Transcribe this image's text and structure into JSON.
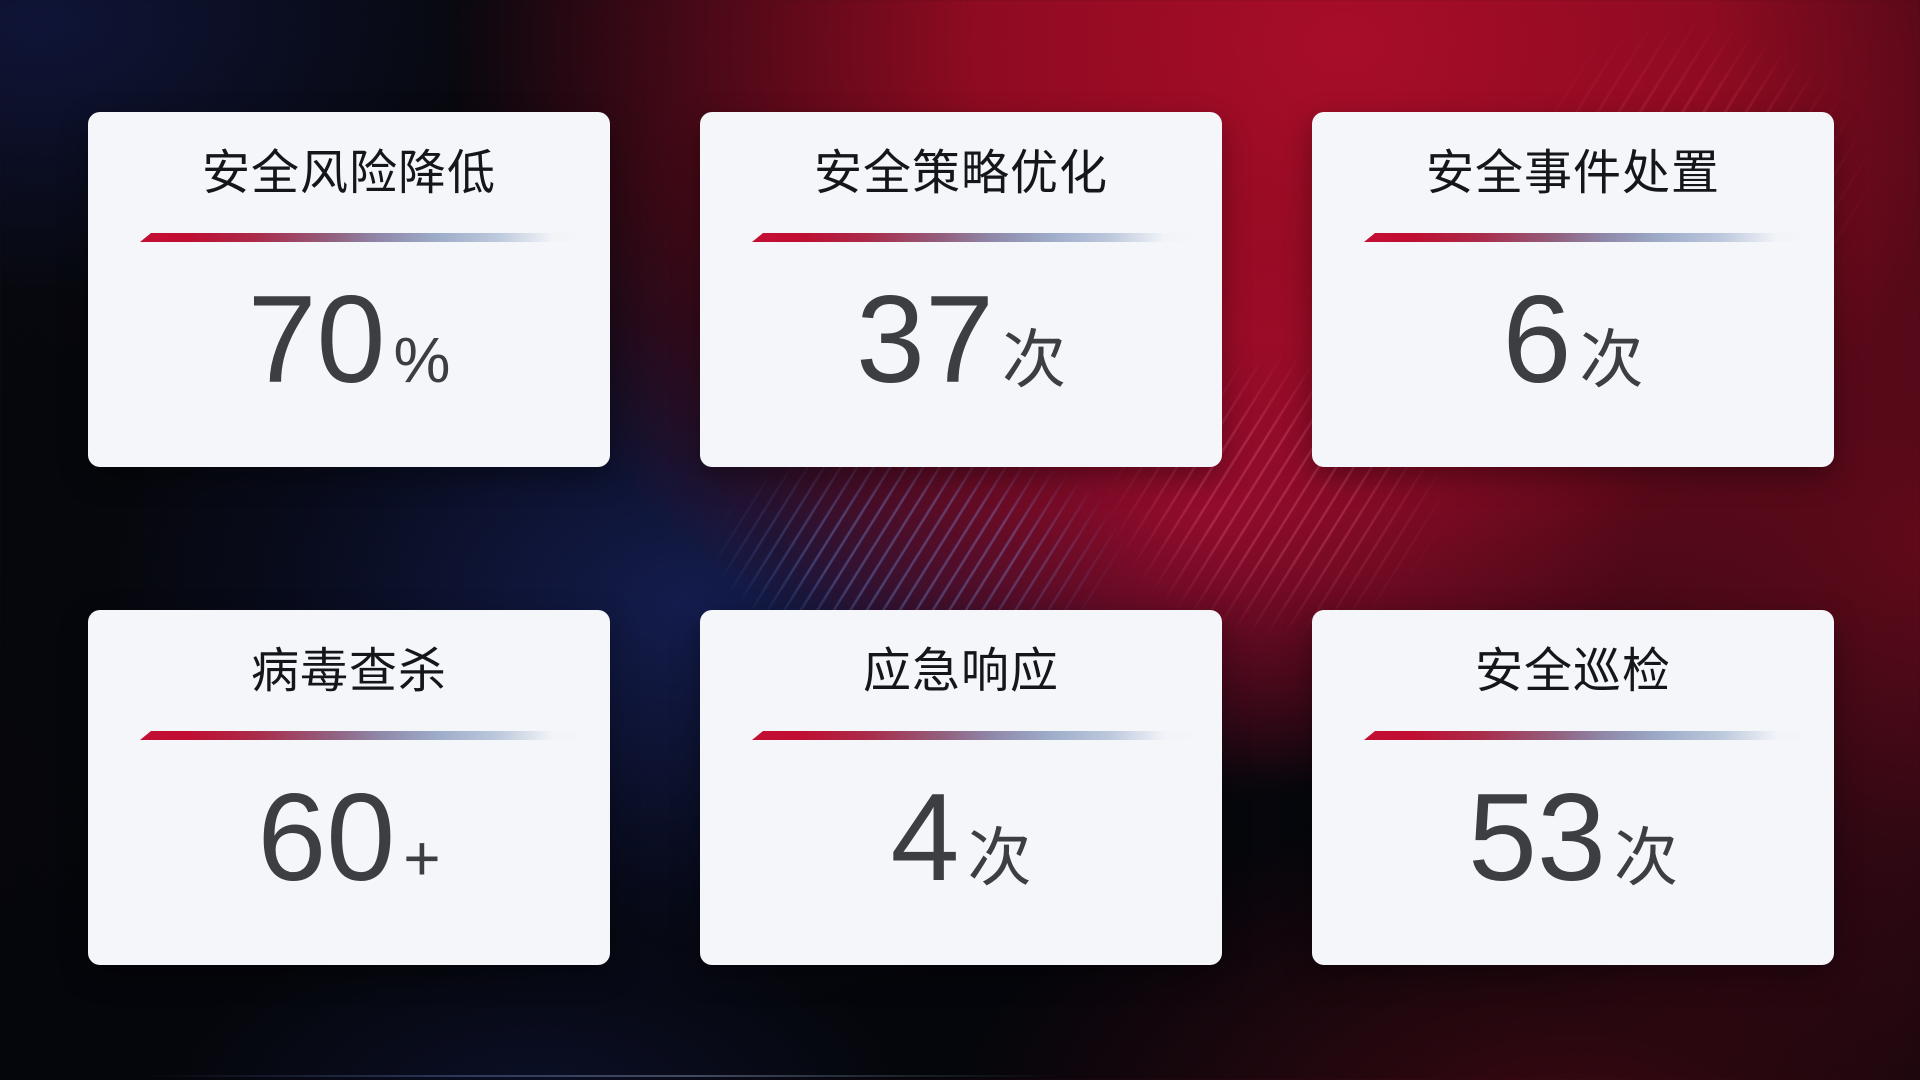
{
  "cards": [
    {
      "title": "安全风险降低",
      "value": "70",
      "unit": "%"
    },
    {
      "title": "安全策略优化",
      "value": "37",
      "unit": "次"
    },
    {
      "title": "安全事件处置",
      "value": "6",
      "unit": "次"
    },
    {
      "title": "病毒查杀",
      "value": "60",
      "unit": "+"
    },
    {
      "title": "应急响应",
      "value": "4",
      "unit": "次"
    },
    {
      "title": "安全巡检",
      "value": "53",
      "unit": "次"
    }
  ],
  "theme": {
    "card_background": "#f5f6f9",
    "title_color": "#15161a",
    "value_color": "#3d3e42",
    "accent_red": "#c20e32",
    "background_dark": "#06070c",
    "background_red": "#a80d28",
    "background_navy": "#162058"
  }
}
